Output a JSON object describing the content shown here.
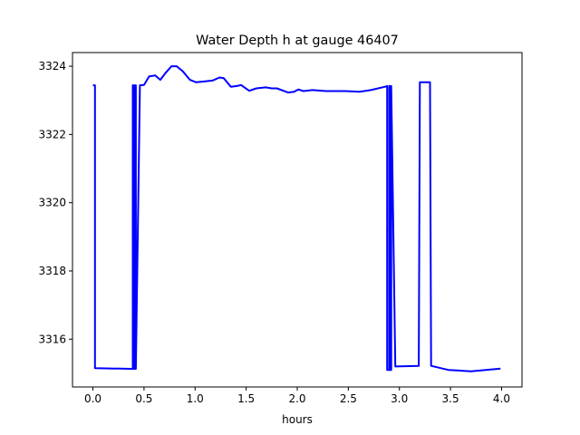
{
  "chart_data": {
    "type": "line",
    "title": "Water Depth h at gauge 46407",
    "xlabel": "hours",
    "ylabel": "",
    "xlim": [
      -0.2,
      4.2
    ],
    "ylim": [
      3314.6,
      3324.4
    ],
    "xticks": [
      0.0,
      0.5,
      1.0,
      1.5,
      2.0,
      2.5,
      3.0,
      3.5,
      4.0
    ],
    "xtick_labels": [
      "0.0",
      "0.5",
      "1.0",
      "1.5",
      "2.0",
      "2.5",
      "3.0",
      "3.5",
      "4.0"
    ],
    "yticks": [
      3316,
      3318,
      3320,
      3322,
      3324
    ],
    "ytick_labels": [
      "3316",
      "3318",
      "3320",
      "3322",
      "3324"
    ],
    "grid": false,
    "series": [
      {
        "name": "h",
        "color": "#0000ff",
        "x": [
          0.0,
          0.02,
          0.02,
          0.38,
          0.39,
          0.39,
          0.4,
          0.4,
          0.41,
          0.41,
          0.42,
          0.42,
          0.46,
          0.5,
          0.55,
          0.61,
          0.66,
          0.71,
          0.77,
          0.82,
          0.88,
          0.95,
          1.01,
          1.08,
          1.17,
          1.24,
          1.28,
          1.35,
          1.41,
          1.45,
          1.53,
          1.6,
          1.69,
          1.75,
          1.8,
          1.91,
          1.97,
          2.01,
          2.06,
          2.15,
          2.28,
          2.46,
          2.61,
          2.72,
          2.86,
          2.88,
          2.88,
          2.9,
          2.9,
          2.91,
          2.91,
          2.92,
          2.92,
          2.96,
          3.19,
          3.2,
          3.3,
          3.31,
          3.48,
          3.7,
          3.99
        ],
        "y": [
          3323.44,
          3323.44,
          3315.15,
          3315.13,
          3315.13,
          3323.44,
          3323.44,
          3315.13,
          3315.13,
          3323.44,
          3323.44,
          3315.13,
          3323.44,
          3323.45,
          3323.7,
          3323.73,
          3323.6,
          3323.8,
          3324.0,
          3324.0,
          3323.85,
          3323.6,
          3323.53,
          3323.55,
          3323.58,
          3323.67,
          3323.65,
          3323.4,
          3323.42,
          3323.45,
          3323.28,
          3323.35,
          3323.38,
          3323.35,
          3323.35,
          3323.23,
          3323.25,
          3323.32,
          3323.27,
          3323.3,
          3323.27,
          3323.27,
          3323.25,
          3323.3,
          3323.4,
          3323.42,
          3315.1,
          3315.1,
          3323.42,
          3323.42,
          3315.1,
          3315.1,
          3323.42,
          3315.2,
          3315.22,
          3323.53,
          3323.53,
          3315.22,
          3315.1,
          3315.06,
          3315.14
        ]
      }
    ]
  }
}
